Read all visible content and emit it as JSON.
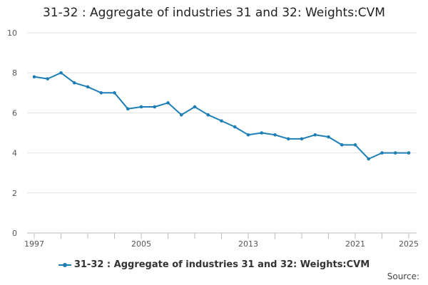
{
  "chart_data": {
    "type": "line",
    "title": "31-32 : Aggregate of industries 31 and 32: Weights:CVM",
    "xlabel": "",
    "ylabel": "",
    "x": [
      1997,
      1998,
      1999,
      2000,
      2001,
      2002,
      2003,
      2004,
      2005,
      2006,
      2007,
      2008,
      2009,
      2010,
      2011,
      2012,
      2013,
      2014,
      2015,
      2016,
      2017,
      2018,
      2019,
      2020,
      2021,
      2022,
      2023,
      2024,
      2025
    ],
    "series": [
      {
        "name": "31-32 : Aggregate of industries 31 and 32: Weights:CVM",
        "values": [
          7.8,
          7.7,
          8.0,
          7.5,
          7.3,
          7.0,
          7.0,
          6.2,
          6.3,
          6.3,
          6.5,
          5.9,
          6.3,
          5.9,
          5.6,
          5.3,
          4.9,
          5.0,
          4.9,
          4.7,
          4.7,
          4.9,
          4.8,
          4.4,
          4.4,
          3.7,
          4.0,
          4.0,
          4.0
        ]
      }
    ],
    "x_tick_labels": [
      "1997",
      "2005",
      "2013",
      "2021",
      "2025"
    ],
    "y_ticks": [
      0,
      2,
      4,
      6,
      8,
      10
    ],
    "ylim": [
      0,
      10
    ],
    "xlim": [
      1997,
      2025
    ],
    "grid": true,
    "legend_position": "bottom",
    "color": "#1d7fb5"
  },
  "legend": {
    "label": "31-32 : Aggregate of industries 31 and 32: Weights:CVM"
  },
  "footer": {
    "source_label": "Source:"
  }
}
